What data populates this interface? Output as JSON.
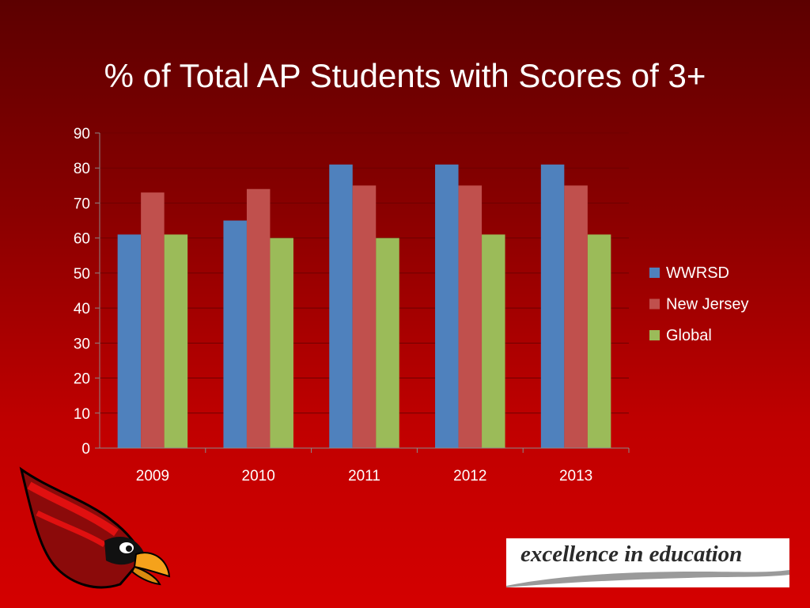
{
  "slide": {
    "title": "% of Total AP Students with Scores of 3+",
    "logo_text": "excellence in education"
  },
  "colors": {
    "WWRSD": "#4f81bd",
    "New Jersey": "#c0504d",
    "Global": "#9bbb59",
    "gridline": "#6e0000",
    "background_top": "#5c0000",
    "background_bottom": "#d40000"
  },
  "icons": {
    "mascot": "cardinal-mascot-icon"
  },
  "chart_data": {
    "type": "bar",
    "title": "% of Total AP Students with Scores of 3+",
    "categories": [
      "2009",
      "2010",
      "2011",
      "2012",
      "2013"
    ],
    "series": [
      {
        "name": "WWRSD",
        "values": [
          61,
          65,
          81,
          81,
          81
        ]
      },
      {
        "name": "New Jersey",
        "values": [
          73,
          74,
          75,
          75,
          75
        ]
      },
      {
        "name": "Global",
        "values": [
          61,
          60,
          60,
          61,
          61
        ]
      }
    ],
    "ylim": [
      0,
      90
    ],
    "yticks": [
      0,
      10,
      20,
      30,
      40,
      50,
      60,
      70,
      80,
      90
    ],
    "grid": true,
    "legend_position": "right"
  }
}
